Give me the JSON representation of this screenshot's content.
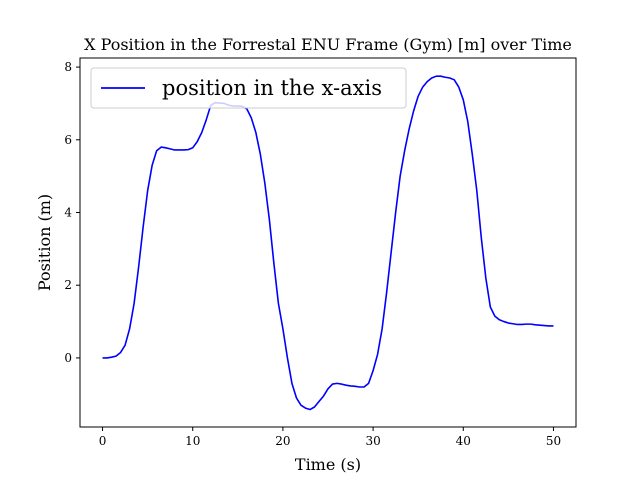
{
  "chart_data": {
    "type": "line",
    "title": "X Position in the Forrestal ENU Frame (Gym) [m] over Time",
    "xlabel": "Time (s)",
    "ylabel": "Position (m)",
    "xlim": [
      -2.5,
      52.5
    ],
    "ylim": [
      -1.9,
      8.25
    ],
    "xticks": [
      0,
      10,
      20,
      30,
      40,
      50
    ],
    "yticks": [
      0,
      2,
      4,
      6,
      8
    ],
    "grid": false,
    "legend_position": "top-left",
    "series": [
      {
        "name": "position in the x-axis",
        "color": "#0000ff",
        "x": [
          0,
          0.5,
          1,
          1.5,
          2,
          2.5,
          3,
          3.5,
          4,
          4.5,
          5,
          5.5,
          6,
          6.5,
          7,
          7.5,
          8,
          8.5,
          9,
          9.5,
          10,
          10.5,
          11,
          11.5,
          12,
          12.5,
          13,
          13.5,
          14,
          14.5,
          15,
          15.5,
          16,
          16.5,
          17,
          17.5,
          18,
          18.5,
          19,
          19.5,
          20,
          20.5,
          21,
          21.5,
          22,
          22.5,
          23,
          23.5,
          24,
          24.5,
          25,
          25.5,
          26,
          26.5,
          27,
          27.5,
          28,
          28.5,
          29,
          29.5,
          30,
          30.5,
          31,
          31.5,
          32,
          32.5,
          33,
          33.5,
          34,
          34.5,
          35,
          35.5,
          36,
          36.5,
          37,
          37.5,
          38,
          38.5,
          39,
          39.5,
          40,
          40.5,
          41,
          41.5,
          42,
          42.5,
          43,
          43.5,
          44,
          44.5,
          45,
          45.5,
          46,
          46.5,
          47,
          47.5,
          48,
          48.5,
          49,
          49.5,
          50
        ],
        "y": [
          0.0,
          0.0,
          0.02,
          0.05,
          0.15,
          0.35,
          0.8,
          1.5,
          2.5,
          3.6,
          4.6,
          5.3,
          5.7,
          5.8,
          5.78,
          5.75,
          5.72,
          5.72,
          5.72,
          5.73,
          5.78,
          5.95,
          6.2,
          6.55,
          6.95,
          7.02,
          7.01,
          7.0,
          6.95,
          6.93,
          6.93,
          6.92,
          6.85,
          6.6,
          6.2,
          5.6,
          4.8,
          3.8,
          2.6,
          1.5,
          0.8,
          0.0,
          -0.7,
          -1.1,
          -1.3,
          -1.38,
          -1.42,
          -1.35,
          -1.2,
          -1.05,
          -0.85,
          -0.72,
          -0.7,
          -0.72,
          -0.75,
          -0.77,
          -0.78,
          -0.8,
          -0.8,
          -0.7,
          -0.35,
          0.1,
          0.8,
          1.8,
          2.9,
          4.0,
          5.0,
          5.7,
          6.3,
          6.8,
          7.2,
          7.45,
          7.6,
          7.7,
          7.75,
          7.75,
          7.72,
          7.7,
          7.65,
          7.45,
          7.1,
          6.5,
          5.6,
          4.6,
          3.3,
          2.2,
          1.4,
          1.15,
          1.05,
          1.0,
          0.96,
          0.94,
          0.92,
          0.92,
          0.93,
          0.93,
          0.91,
          0.9,
          0.89,
          0.88,
          0.88
        ]
      }
    ]
  }
}
